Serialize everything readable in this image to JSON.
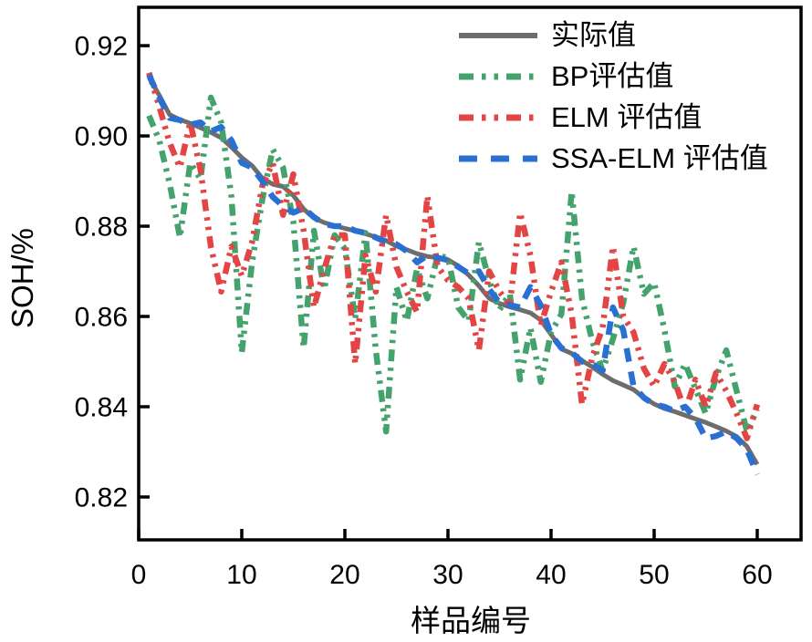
{
  "chart_data": {
    "type": "line",
    "title": "",
    "xlabel": "样品编号",
    "ylabel": "SOH/%",
    "xlim": [
      0,
      64.25
    ],
    "ylim": [
      0.8105,
      0.9285
    ],
    "grid": false,
    "legend_position": "upper-right-inside",
    "x_tick_values": [
      0,
      10,
      20,
      30,
      40,
      50,
      60
    ],
    "x_tick_labels": [
      "0",
      "10",
      "20",
      "30",
      "40",
      "50",
      "60"
    ],
    "y_tick_values": [
      0.92,
      0.9,
      0.88,
      0.86,
      0.84,
      0.82
    ],
    "y_tick_labels": [
      "0.92",
      "0.90",
      "0.88",
      "0.86",
      "0.84",
      "0.82"
    ],
    "x_start": 1,
    "axis_color": "#000000",
    "series": [
      {
        "name": "实际值",
        "color": "#6d6d6d",
        "style": "solid",
        "width": 5,
        "values": [
          0.913,
          0.909,
          0.9047,
          0.9036,
          0.9028,
          0.9018,
          0.9008,
          0.8996,
          0.8975,
          0.8952,
          0.8934,
          0.8906,
          0.8893,
          0.8888,
          0.8868,
          0.8838,
          0.8818,
          0.8808,
          0.8801,
          0.8795,
          0.879,
          0.8783,
          0.8776,
          0.8768,
          0.8756,
          0.8748,
          0.8739,
          0.8733,
          0.873,
          0.8726,
          0.8712,
          0.8692,
          0.8668,
          0.864,
          0.8629,
          0.8621,
          0.8615,
          0.8608,
          0.8592,
          0.856,
          0.8528,
          0.8518,
          0.8502,
          0.8488,
          0.8472,
          0.8458,
          0.8448,
          0.8438,
          0.842,
          0.8406,
          0.8396,
          0.8389,
          0.8381,
          0.8373,
          0.8365,
          0.8356,
          0.8346,
          0.8334,
          0.8312,
          0.8272
        ]
      },
      {
        "name": "BP评估值",
        "color": "#44a36c",
        "style": "dashdotdot",
        "width": 6.5,
        "values": [
          0.9045,
          0.899,
          0.8895,
          0.8775,
          0.894,
          0.8905,
          0.9085,
          0.903,
          0.8865,
          0.852,
          0.872,
          0.886,
          0.897,
          0.893,
          0.881,
          0.853,
          0.879,
          0.866,
          0.878,
          0.875,
          0.8595,
          0.8785,
          0.8525,
          0.8345,
          0.8665,
          0.859,
          0.8705,
          0.864,
          0.8735,
          0.873,
          0.862,
          0.859,
          0.8765,
          0.868,
          0.8615,
          0.865,
          0.846,
          0.8575,
          0.8455,
          0.8565,
          0.8605,
          0.8877,
          0.864,
          0.8545,
          0.848,
          0.855,
          0.863,
          0.8755,
          0.865,
          0.8675,
          0.857,
          0.8445,
          0.8495,
          0.844,
          0.8385,
          0.8465,
          0.8525,
          0.8435,
          0.8345,
          0.8395
        ]
      },
      {
        "name": "ELM 评估值",
        "color": "#e34545",
        "style": "dashdotdot",
        "width": 6.5,
        "values": [
          0.914,
          0.9065,
          0.8985,
          0.893,
          0.903,
          0.8925,
          0.8755,
          0.8655,
          0.8755,
          0.869,
          0.8765,
          0.889,
          0.894,
          0.8825,
          0.8915,
          0.879,
          0.862,
          0.8705,
          0.878,
          0.878,
          0.8495,
          0.8735,
          0.8655,
          0.8825,
          0.871,
          0.8655,
          0.861,
          0.8867,
          0.871,
          0.868,
          0.8665,
          0.864,
          0.8525,
          0.87,
          0.8655,
          0.8625,
          0.883,
          0.8735,
          0.858,
          0.8655,
          0.872,
          0.8605,
          0.8405,
          0.851,
          0.8575,
          0.8755,
          0.86,
          0.8565,
          0.8485,
          0.8445,
          0.8495,
          0.8455,
          0.839,
          0.846,
          0.84,
          0.8475,
          0.8435,
          0.8385,
          0.833,
          0.8405
        ]
      },
      {
        "name": "SSA-ELM 评估值",
        "color": "#2a6fd2",
        "style": "dash",
        "width": 6.5,
        "values": [
          0.9135,
          0.9085,
          0.904,
          0.9035,
          0.9025,
          0.903,
          0.901,
          0.902,
          0.899,
          0.894,
          0.893,
          0.89,
          0.8865,
          0.8845,
          0.883,
          0.884,
          0.882,
          0.8805,
          0.88,
          0.88,
          0.879,
          0.8785,
          0.8775,
          0.8765,
          0.876,
          0.8745,
          0.872,
          0.8735,
          0.873,
          0.8725,
          0.871,
          0.8695,
          0.87,
          0.866,
          0.863,
          0.8625,
          0.862,
          0.8665,
          0.8625,
          0.856,
          0.853,
          0.852,
          0.85,
          0.8495,
          0.848,
          0.862,
          0.857,
          0.8445,
          0.842,
          0.8405,
          0.84,
          0.839,
          0.84,
          0.8375,
          0.833,
          0.8335,
          0.8345,
          0.833,
          0.8305,
          0.825
        ]
      }
    ]
  },
  "legend": {
    "items": [
      {
        "label": "实际值"
      },
      {
        "label": "BP评估值"
      },
      {
        "label": "ELM 评估值"
      },
      {
        "label": "SSA-ELM 评估值"
      }
    ]
  }
}
